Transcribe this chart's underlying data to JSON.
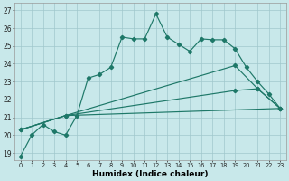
{
  "xlabel": "Humidex (Indice chaleur)",
  "bg_color": "#c8e8ea",
  "grid_color": "#a0c8cc",
  "line_color": "#1e7868",
  "xlim_min": -0.5,
  "xlim_max": 23.5,
  "ylim_min": 18.6,
  "ylim_max": 27.4,
  "xticks": [
    0,
    1,
    2,
    3,
    4,
    5,
    6,
    7,
    8,
    9,
    10,
    11,
    12,
    13,
    14,
    15,
    16,
    17,
    18,
    19,
    20,
    21,
    22,
    23
  ],
  "yticks": [
    19,
    20,
    21,
    22,
    23,
    24,
    25,
    26,
    27
  ],
  "main_x": [
    0,
    1,
    2,
    3,
    4,
    5,
    6,
    7,
    8,
    9,
    10,
    11,
    12,
    13,
    14,
    15,
    16,
    17,
    18,
    19,
    20,
    21,
    22,
    23
  ],
  "main_y": [
    18.8,
    20.0,
    20.6,
    20.2,
    20.0,
    21.1,
    23.2,
    23.4,
    23.8,
    25.5,
    25.4,
    25.4,
    26.8,
    25.5,
    25.1,
    24.7,
    25.4,
    25.35,
    25.35,
    24.85,
    23.8,
    23.0,
    22.3,
    21.5
  ],
  "line2_x": [
    0,
    4,
    19,
    21,
    23
  ],
  "line2_y": [
    20.3,
    21.1,
    23.9,
    22.6,
    21.5
  ],
  "line3_x": [
    0,
    4,
    19,
    21,
    23
  ],
  "line3_y": [
    20.3,
    21.1,
    22.5,
    22.6,
    21.5
  ],
  "line4_x": [
    0,
    4,
    23
  ],
  "line4_y": [
    20.3,
    21.1,
    21.5
  ]
}
